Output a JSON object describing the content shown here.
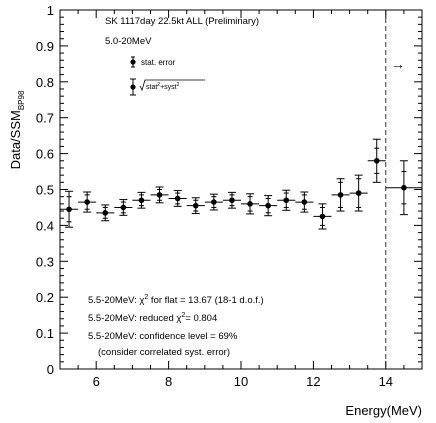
{
  "chart_data": {
    "type": "scatter",
    "ylabel": "Data/SSM",
    "ylabel_subscript": "BP98",
    "xlabel": "Energy(MeV)",
    "xlim": [
      5,
      15
    ],
    "ylim": [
      0,
      1
    ],
    "grid": false,
    "x_ticks": [
      6,
      8,
      10,
      12,
      14
    ],
    "y_ticks": [
      0,
      0.1,
      0.2,
      0.3,
      0.4,
      0.5,
      0.6,
      0.7,
      0.8,
      0.9,
      1
    ],
    "x_tick_labels": [
      "6",
      "8",
      "10",
      "12",
      "14"
    ],
    "y_tick_labels": [
      "0",
      "0.1",
      "0.2",
      "0.3",
      "0.4",
      "0.5",
      "0.6",
      "0.7",
      "0.8",
      "0.9",
      "1"
    ],
    "header": {
      "line1": "SK  1117day  22.5kt  ALL (Preliminary)",
      "line2": "5.0-20MeV"
    },
    "legend": {
      "stat_label": "stat. error",
      "syst_label_prefix": "stat",
      "syst_label_mid": "+syst",
      "syst_label_sup": "2"
    },
    "cutoff_line_x": 14,
    "overflow_arrow": "→",
    "series": [
      {
        "x": [
          5.25,
          5.75,
          6.25,
          6.75,
          7.25,
          7.75,
          8.25,
          8.75,
          9.25,
          9.75,
          10.25,
          10.75,
          11.25,
          11.75,
          12.25,
          12.75,
          13.25,
          13.75,
          14.5
        ],
        "y": [
          0.445,
          0.465,
          0.435,
          0.45,
          0.47,
          0.485,
          0.475,
          0.455,
          0.465,
          0.47,
          0.46,
          0.455,
          0.47,
          0.465,
          0.425,
          0.485,
          0.49,
          0.58,
          0.505
        ],
        "stat_err": [
          0.035,
          0.02,
          0.015,
          0.015,
          0.015,
          0.015,
          0.015,
          0.015,
          0.015,
          0.015,
          0.02,
          0.02,
          0.02,
          0.02,
          0.025,
          0.035,
          0.04,
          0.035,
          0.045
        ],
        "total_err": [
          0.05,
          0.028,
          0.022,
          0.022,
          0.022,
          0.022,
          0.022,
          0.022,
          0.022,
          0.022,
          0.028,
          0.028,
          0.028,
          0.028,
          0.035,
          0.045,
          0.05,
          0.06,
          0.075
        ],
        "half_width": [
          0.25,
          0.25,
          0.25,
          0.25,
          0.25,
          0.25,
          0.25,
          0.25,
          0.25,
          0.25,
          0.25,
          0.25,
          0.25,
          0.25,
          0.25,
          0.25,
          0.25,
          0.25,
          0.5
        ]
      }
    ],
    "annotations": {
      "chi2_pre": "5.5-20MeV: χ",
      "chi2_sup": "2",
      "chi2_post": " for flat = 13.67 (18-1 d.o.f.)",
      "reduced_pre": "5.5-20MeV: reduced χ",
      "reduced_sup": "2",
      "reduced_post": "= 0.804",
      "confidence": "5.5-20MeV: confidence level = 69%",
      "note": "(consider correlated syst. error)"
    }
  }
}
